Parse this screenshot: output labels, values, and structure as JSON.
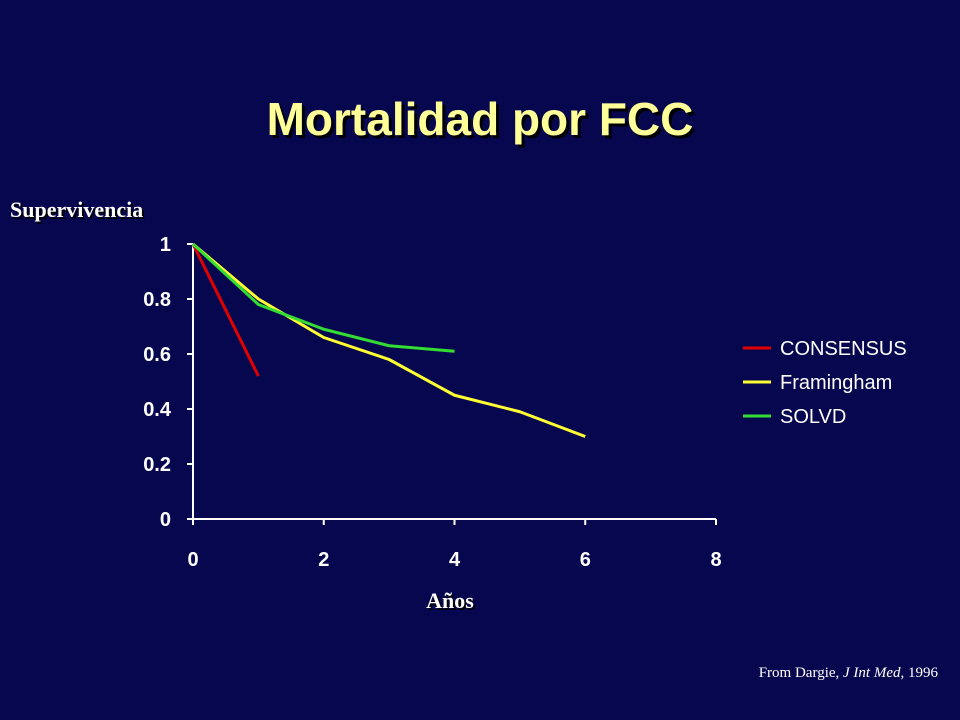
{
  "slide": {
    "title": "Mortalidad por FCC"
  },
  "citation": {
    "prefix": "From Dargie, ",
    "journal": "J Int Med",
    "suffix": ", 1996"
  },
  "chart_data": {
    "type": "line",
    "ylabel": "Supervivencia",
    "xlabel": "Años",
    "xlim": [
      0,
      8
    ],
    "ylim": [
      0,
      1
    ],
    "xticks": [
      "0",
      "2",
      "4",
      "6",
      "8"
    ],
    "yticks": [
      "0",
      "0.2",
      "0.4",
      "0.6",
      "0.8",
      "1"
    ],
    "grid": false,
    "legend_position": "right",
    "series": [
      {
        "name": "CONSENSUS",
        "color": "#e00000",
        "points": [
          [
            0,
            1.0
          ],
          [
            1,
            0.52
          ]
        ]
      },
      {
        "name": "Framingham",
        "color": "#ffff33",
        "points": [
          [
            0,
            1.0
          ],
          [
            1,
            0.8
          ],
          [
            2,
            0.66
          ],
          [
            3,
            0.58
          ],
          [
            4,
            0.45
          ],
          [
            5,
            0.39
          ],
          [
            6,
            0.3
          ]
        ]
      },
      {
        "name": "SOLVD",
        "color": "#33dd33",
        "points": [
          [
            0,
            1.0
          ],
          [
            1,
            0.78
          ],
          [
            2,
            0.69
          ],
          [
            3,
            0.63
          ],
          [
            4,
            0.61
          ]
        ]
      }
    ]
  }
}
